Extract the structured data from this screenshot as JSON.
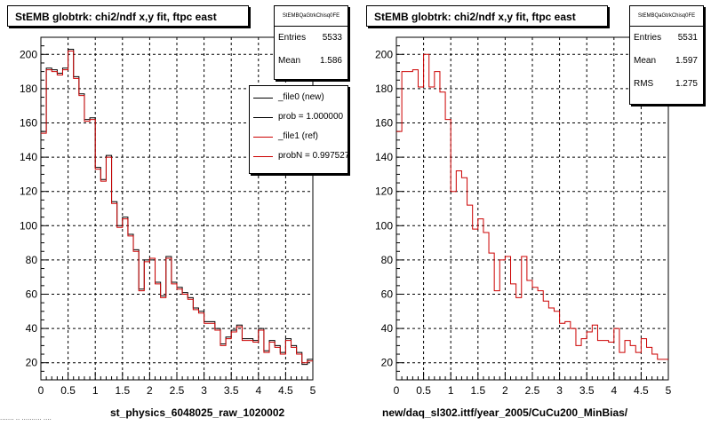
{
  "footer_text": "....... .. .......... ....",
  "chart_data": [
    {
      "type": "histogram",
      "title": "StEMB globtrk: chi2/ndf x,y fit, ftpc east",
      "xlabel": "st_physics_6048025_raw_1020002",
      "ylabel": "",
      "xlim": [
        0,
        5
      ],
      "ylim": [
        10,
        210
      ],
      "xticks": [
        "0",
        "0.5",
        "1",
        "1.5",
        "2",
        "2.5",
        "3",
        "3.5",
        "4",
        "4.5",
        "5"
      ],
      "yticks": [
        "20",
        "40",
        "60",
        "80",
        "100",
        "120",
        "140",
        "160",
        "180",
        "200"
      ],
      "grid": true,
      "bin_width": 0.1,
      "stats": {
        "name": "StEMBQaGtrkChisq0FE",
        "entries_label": "Entries",
        "entries": "5533",
        "mean_label": "Mean",
        "mean": "1.586"
      },
      "legend": [
        "_file0 (new)",
        "prob = 1.000000",
        "_file1 (ref)",
        "probN = 0.997527"
      ],
      "colors": {
        "new": "#000000",
        "ref": "#cc0000"
      },
      "series": [
        {
          "name": "_file0 (new)",
          "values": [
            155,
            192,
            191,
            189,
            192,
            203,
            187,
            177,
            162,
            163,
            134,
            127,
            141,
            114,
            100,
            105,
            95,
            86,
            63,
            80,
            80,
            67,
            59,
            82,
            67,
            64,
            61,
            58,
            52,
            50,
            44,
            44,
            40,
            31,
            35,
            39,
            42,
            34,
            34,
            33,
            40,
            27,
            33,
            30,
            26,
            34,
            30,
            26,
            19,
            22
          ]
        },
        {
          "name": "_file1 (ref)",
          "values": [
            154,
            191,
            190,
            188,
            191,
            202,
            186,
            176,
            161,
            162,
            133,
            126,
            140,
            113,
            99,
            104,
            94,
            85,
            62,
            79,
            81,
            66,
            58,
            81,
            66,
            63,
            60,
            57,
            51,
            49,
            43,
            43,
            39,
            30,
            34,
            38,
            41,
            33,
            33,
            32,
            39,
            26,
            32,
            29,
            25,
            33,
            29,
            25,
            20,
            21
          ]
        }
      ]
    },
    {
      "type": "histogram",
      "title": "StEMB globtrk: chi2/ndf x,y fit, ftpc east",
      "xlabel": "new/daq_sl302.ittf/year_2005/CuCu200_MinBias/",
      "ylabel": "",
      "xlim": [
        0,
        5
      ],
      "ylim": [
        10,
        210
      ],
      "xticks": [
        "0",
        "0.5",
        "1",
        "1.5",
        "2",
        "2.5",
        "3",
        "3.5",
        "4",
        "4.5",
        "5"
      ],
      "yticks": [
        "20",
        "40",
        "60",
        "80",
        "100",
        "120",
        "140",
        "160",
        "180",
        "200"
      ],
      "grid": true,
      "bin_width": 0.1,
      "stats": {
        "name": "StEMBQaGtrkChisq0FE",
        "entries_label": "Entries",
        "entries": "5531",
        "mean_label": "Mean",
        "mean": "1.597",
        "rms_label": "RMS",
        "rms": "1.275"
      },
      "colors": {
        "ref": "#cc0000"
      },
      "series": [
        {
          "name": "ref",
          "values": [
            155,
            190,
            190,
            191,
            181,
            200,
            181,
            190,
            178,
            162,
            120,
            132,
            128,
            112,
            98,
            104,
            96,
            84,
            62,
            80,
            82,
            66,
            58,
            82,
            68,
            64,
            62,
            56,
            52,
            50,
            43,
            44,
            40,
            30,
            34,
            38,
            42,
            33,
            33,
            32,
            40,
            26,
            33,
            30,
            26,
            34,
            29,
            25,
            22,
            22
          ]
        }
      ]
    }
  ]
}
